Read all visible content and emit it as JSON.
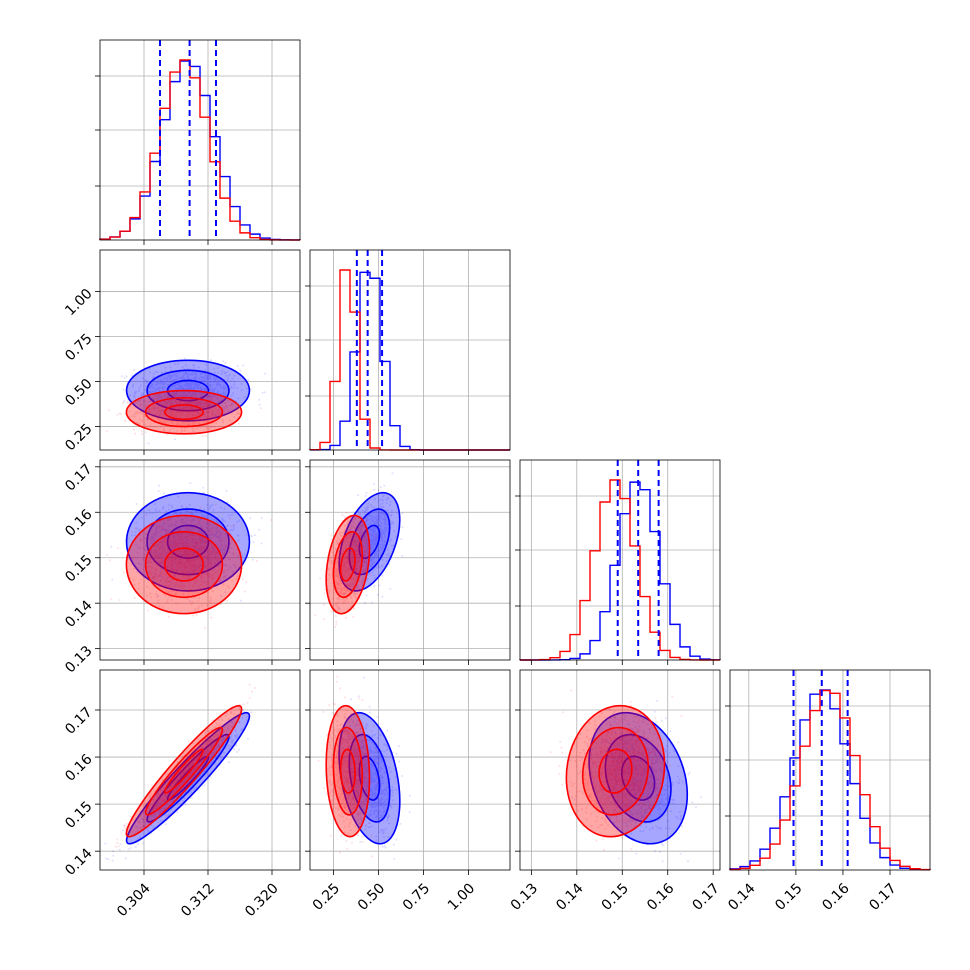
{
  "colors": {
    "blue": "#0000ff",
    "red": "#ff0000",
    "grid": "#b0b0b0",
    "axes": "#000000"
  },
  "chart_data": {
    "type": "corner",
    "parameters": 4,
    "series": [
      {
        "color": "#0000ff",
        "mean": [
          0.3095,
          0.45,
          0.1535,
          0.1555
        ],
        "std": [
          0.0032,
          0.07,
          0.0045,
          0.0058
        ],
        "corr": [
          [
            1,
            0,
            0,
            0.95
          ],
          [
            0,
            1,
            0.45,
            -0.35
          ],
          [
            0,
            0.45,
            1,
            -0.25
          ],
          [
            0.95,
            -0.35,
            -0.25,
            1
          ]
        ]
      },
      {
        "color": "#ff0000",
        "mean": [
          0.309,
          0.33,
          0.1485,
          0.157
        ],
        "std": [
          0.003,
          0.05,
          0.0045,
          0.0058
        ],
        "corr": [
          [
            1,
            0,
            0,
            0.95
          ],
          [
            0,
            1,
            0.3,
            -0.1
          ],
          [
            0,
            0.3,
            1,
            0.1
          ],
          [
            0.95,
            -0.1,
            0.1,
            1
          ]
        ]
      }
    ],
    "ranges": [
      [
        0.2985,
        0.3235
      ],
      [
        0.12,
        1.23
      ],
      [
        0.1275,
        0.1715
      ],
      [
        0.136,
        0.1785
      ]
    ],
    "ticks": [
      {
        "values": [
          0.304,
          0.312,
          0.32
        ],
        "labels": [
          "0.304",
          "0.312",
          "0.320"
        ]
      },
      {
        "values": [
          0.25,
          0.5,
          0.75,
          1.0
        ],
        "labels": [
          "0.25",
          "0.50",
          "0.75",
          "1.00"
        ]
      },
      {
        "values": [
          0.13,
          0.14,
          0.15,
          0.16,
          0.17
        ],
        "labels": [
          "0.13",
          "0.14",
          "0.15",
          "0.16",
          "0.17"
        ]
      },
      {
        "values": [
          0.14,
          0.15,
          0.16,
          0.17
        ],
        "labels": [
          "0.14",
          "0.15",
          "0.16",
          "0.17"
        ]
      }
    ],
    "quantile_lines": [
      [
        0.306,
        0.3097,
        0.313
      ],
      [
        0.38,
        0.44,
        0.52
      ],
      [
        0.149,
        0.1535,
        0.158
      ],
      [
        0.1495,
        0.1555,
        0.161
      ]
    ],
    "hist_bins": 20,
    "contour_levels": [
      0.8,
      1.6,
      2.4
    ],
    "grid": true,
    "legend": "none"
  }
}
